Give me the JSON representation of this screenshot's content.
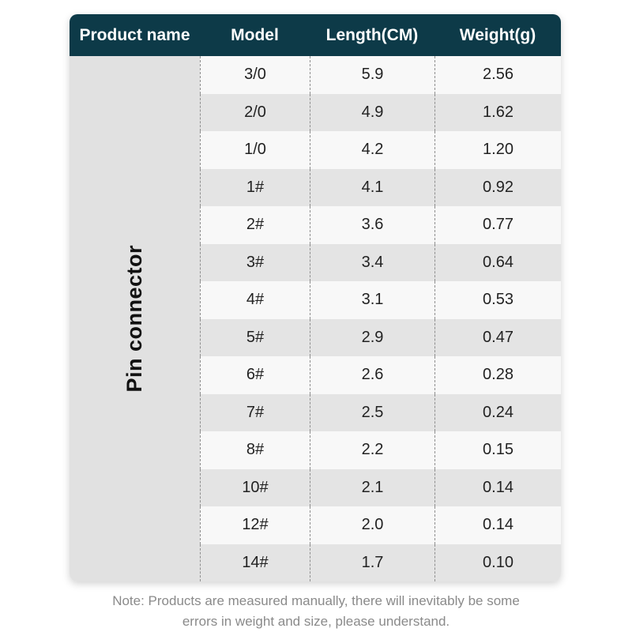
{
  "table": {
    "columns": [
      "Product name",
      "Model",
      "Length(CM)",
      "Weight(g)"
    ],
    "product_name": "Pin connector",
    "rows": [
      {
        "model": "3/0",
        "length": "5.9",
        "weight": "2.56"
      },
      {
        "model": "2/0",
        "length": "4.9",
        "weight": "1.62"
      },
      {
        "model": "1/0",
        "length": "4.2",
        "weight": "1.20"
      },
      {
        "model": "1#",
        "length": "4.1",
        "weight": "0.92"
      },
      {
        "model": "2#",
        "length": "3.6",
        "weight": "0.77"
      },
      {
        "model": "3#",
        "length": "3.4",
        "weight": "0.64"
      },
      {
        "model": "4#",
        "length": "3.1",
        "weight": "0.53"
      },
      {
        "model": "5#",
        "length": "2.9",
        "weight": "0.47"
      },
      {
        "model": "6#",
        "length": "2.6",
        "weight": "0.28"
      },
      {
        "model": "7#",
        "length": "2.5",
        "weight": "0.24"
      },
      {
        "model": "8#",
        "length": "2.2",
        "weight": "0.15"
      },
      {
        "model": "10#",
        "length": "2.1",
        "weight": "0.14"
      },
      {
        "model": "12#",
        "length": "2.0",
        "weight": "0.14"
      },
      {
        "model": "14#",
        "length": "1.7",
        "weight": "0.10"
      }
    ]
  },
  "note": {
    "line1": "Note: Products are measured manually, there will inevitably be some",
    "line2": "errors in weight and size, please understand."
  },
  "colors": {
    "header_bg": "#0d3a48",
    "header_text": "#ffffff",
    "row_light": "#f8f8f8",
    "row_dark": "#e4e4e4",
    "product_col_bg": "#e1e1e1",
    "divider": "#8f8f8f",
    "note_text": "#8a8a8a"
  },
  "chart_data": {
    "type": "table",
    "title": "Pin connector size chart",
    "columns": [
      "Product name",
      "Model",
      "Length(CM)",
      "Weight(g)"
    ],
    "product_name": "Pin connector",
    "models": [
      "3/0",
      "2/0",
      "1/0",
      "1#",
      "2#",
      "3#",
      "4#",
      "5#",
      "6#",
      "7#",
      "8#",
      "10#",
      "12#",
      "14#"
    ],
    "length_cm": [
      5.9,
      4.9,
      4.2,
      4.1,
      3.6,
      3.4,
      3.1,
      2.9,
      2.6,
      2.5,
      2.2,
      2.1,
      2.0,
      1.7
    ],
    "weight_g": [
      2.56,
      1.62,
      1.2,
      0.92,
      0.77,
      0.64,
      0.53,
      0.47,
      0.28,
      0.24,
      0.15,
      0.14,
      0.14,
      0.1
    ]
  }
}
